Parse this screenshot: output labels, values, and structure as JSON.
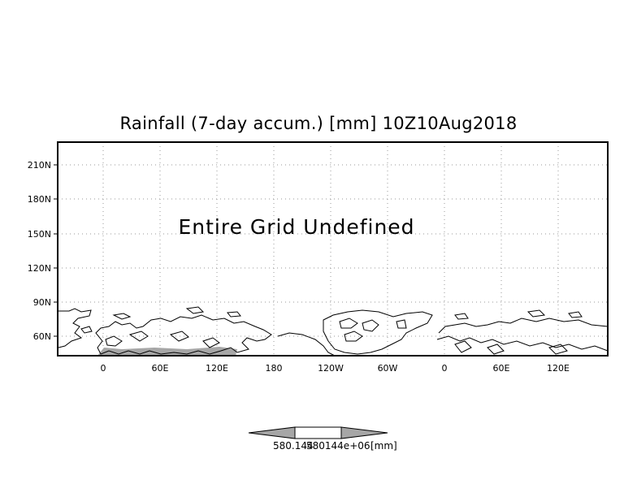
{
  "title": "Rainfall (7-day accum.) [mm] 10Z10Aug2018",
  "message": "Entire Grid Undefined",
  "y_ticks": [
    "210N",
    "180N",
    "150N",
    "120N",
    "90N",
    "60N"
  ],
  "x_ticks": [
    "0",
    "60E",
    "120E",
    "180",
    "120W",
    "60W",
    "0",
    "60E",
    "120E"
  ],
  "colorbar": {
    "label_1": "580.144",
    "label_2": "580144e+06",
    "units": "[mm]"
  },
  "colors": {
    "land_shade": "#a6a6a6",
    "grid": "#9a9a9a",
    "colorbar_arrow": "#a6a6a6"
  }
}
